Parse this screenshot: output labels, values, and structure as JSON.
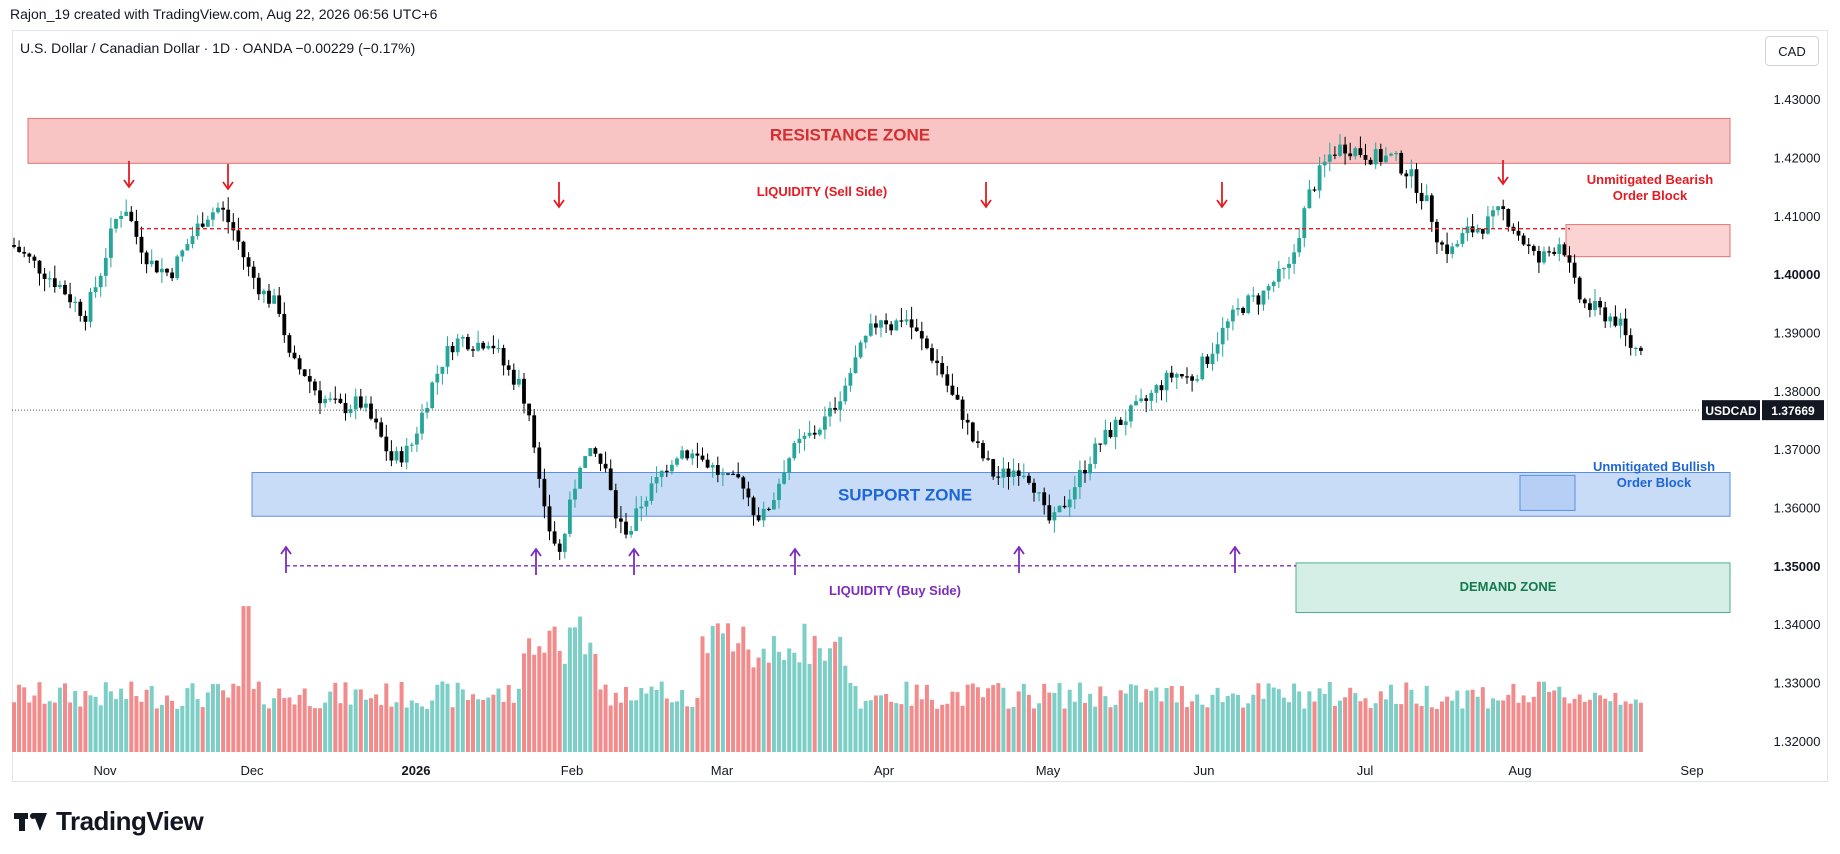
{
  "header": {
    "attribution": "Rajon_19 created with TradingView.com, Aug 22, 2026 06:56 UTC+6",
    "symbol_line": "U.S. Dollar / Canadian Dollar · 1D · OANDA  −0.00229 (−0.17%)",
    "currency": "CAD"
  },
  "brand": "TradingView",
  "colors": {
    "up": "#26a69a",
    "down": "#000000",
    "vol_up": "#7ccfc6",
    "vol_down": "#f28b8b",
    "resistance": "#f8c4c4",
    "support": "#c9dcf7",
    "demand": "#d6efe6",
    "sell": "#e31b23",
    "buy": "#7b2cbf"
  },
  "chart_data": {
    "type": "candlestick",
    "ylim": [
      1.315,
      1.435
    ],
    "y_ticks": [
      "1.43000",
      "1.42000",
      "1.41000",
      "1.40000",
      "1.39000",
      "1.38000",
      "1.37000",
      "1.36000",
      "1.35000",
      "1.34000",
      "1.33000",
      "1.32000"
    ],
    "x_labels": [
      {
        "label": "Nov",
        "x": 105
      },
      {
        "label": "Dec",
        "x": 252
      },
      {
        "label": "2026",
        "x": 416
      },
      {
        "label": "Feb",
        "x": 572
      },
      {
        "label": "Mar",
        "x": 722
      },
      {
        "label": "Apr",
        "x": 884
      },
      {
        "label": "May",
        "x": 1048
      },
      {
        "label": "Jun",
        "x": 1204
      },
      {
        "label": "Jul",
        "x": 1365
      },
      {
        "label": "Aug",
        "x": 1520
      },
      {
        "label": "Sep",
        "x": 1692
      }
    ],
    "last_price": {
      "label": "USDCAD",
      "value": "1.37669",
      "price": 1.37669
    },
    "zones": {
      "resistance": {
        "label": "RESISTANCE ZONE",
        "low": 1.419,
        "high": 1.4267
      },
      "support": {
        "label": "SUPPORT ZONE",
        "low": 1.3585,
        "high": 1.366
      },
      "demand": {
        "label": "DEMAND ZONE",
        "low": 1.342,
        "high": 1.3505
      },
      "bearish_ob": {
        "label1": "Unmitigated Bearish",
        "label2": "Order Block",
        "low": 1.403,
        "high": 1.4085
      },
      "bullish_ob": {
        "label1": "Unmitigated Bullish",
        "label2": "Order Block",
        "low": 1.3595,
        "high": 1.3655
      }
    },
    "liquidity": {
      "sell": {
        "label": "LIQUIDITY (Sell Side)",
        "level": 1.4078
      },
      "buy": {
        "label": "LIQUIDITY (Buy Side)",
        "level": 1.35
      }
    },
    "close_path": [
      [
        12,
        1.405
      ],
      [
        40,
        1.401
      ],
      [
        60,
        1.398
      ],
      [
        85,
        1.393
      ],
      [
        100,
        1.4
      ],
      [
        115,
        1.409
      ],
      [
        125,
        1.412
      ],
      [
        135,
        1.407
      ],
      [
        150,
        1.402
      ],
      [
        170,
        1.4
      ],
      [
        190,
        1.406
      ],
      [
        205,
        1.41
      ],
      [
        220,
        1.4115
      ],
      [
        235,
        1.407
      ],
      [
        248,
        1.401
      ],
      [
        262,
        1.397
      ],
      [
        280,
        1.394
      ],
      [
        290,
        1.385
      ],
      [
        305,
        1.383
      ],
      [
        320,
        1.379
      ],
      [
        340,
        1.377
      ],
      [
        360,
        1.378
      ],
      [
        375,
        1.374
      ],
      [
        392,
        1.368
      ],
      [
        410,
        1.37
      ],
      [
        422,
        1.376
      ],
      [
        432,
        1.381
      ],
      [
        442,
        1.385
      ],
      [
        452,
        1.388
      ],
      [
        462,
        1.389
      ],
      [
        476,
        1.388
      ],
      [
        490,
        1.389
      ],
      [
        505,
        1.384
      ],
      [
        520,
        1.381
      ],
      [
        532,
        1.375
      ],
      [
        542,
        1.36
      ],
      [
        550,
        1.356
      ],
      [
        560,
        1.352
      ],
      [
        570,
        1.36
      ],
      [
        580,
        1.368
      ],
      [
        595,
        1.369
      ],
      [
        606,
        1.366
      ],
      [
        618,
        1.357
      ],
      [
        630,
        1.356
      ],
      [
        642,
        1.361
      ],
      [
        655,
        1.364
      ],
      [
        665,
        1.367
      ],
      [
        680,
        1.37
      ],
      [
        692,
        1.369
      ],
      [
        705,
        1.368
      ],
      [
        718,
        1.366
      ],
      [
        730,
        1.364
      ],
      [
        742,
        1.365
      ],
      [
        752,
        1.36
      ],
      [
        762,
        1.358
      ],
      [
        774,
        1.362
      ],
      [
        786,
        1.368
      ],
      [
        800,
        1.371
      ],
      [
        815,
        1.373
      ],
      [
        830,
        1.376
      ],
      [
        845,
        1.381
      ],
      [
        858,
        1.386
      ],
      [
        870,
        1.39
      ],
      [
        882,
        1.393
      ],
      [
        892,
        1.391
      ],
      [
        904,
        1.393
      ],
      [
        915,
        1.39
      ],
      [
        928,
        1.387
      ],
      [
        940,
        1.384
      ],
      [
        952,
        1.379
      ],
      [
        963,
        1.376
      ],
      [
        974,
        1.371
      ],
      [
        985,
        1.368
      ],
      [
        996,
        1.365
      ],
      [
        1008,
        1.366
      ],
      [
        1020,
        1.367
      ],
      [
        1032,
        1.365
      ],
      [
        1044,
        1.359
      ],
      [
        1052,
        1.357
      ],
      [
        1062,
        1.36
      ],
      [
        1075,
        1.364
      ],
      [
        1088,
        1.368
      ],
      [
        1100,
        1.371
      ],
      [
        1115,
        1.374
      ],
      [
        1130,
        1.376
      ],
      [
        1145,
        1.378
      ],
      [
        1160,
        1.381
      ],
      [
        1175,
        1.383
      ],
      [
        1190,
        1.382
      ],
      [
        1205,
        1.385
      ],
      [
        1218,
        1.389
      ],
      [
        1230,
        1.392
      ],
      [
        1245,
        1.395
      ],
      [
        1260,
        1.396
      ],
      [
        1275,
        1.399
      ],
      [
        1290,
        1.401
      ],
      [
        1300,
        1.408
      ],
      [
        1310,
        1.414
      ],
      [
        1322,
        1.418
      ],
      [
        1332,
        1.421
      ],
      [
        1345,
        1.422
      ],
      [
        1360,
        1.421
      ],
      [
        1375,
        1.42
      ],
      [
        1392,
        1.42
      ],
      [
        1405,
        1.418
      ],
      [
        1418,
        1.415
      ],
      [
        1430,
        1.411
      ],
      [
        1440,
        1.405
      ],
      [
        1452,
        1.404
      ],
      [
        1465,
        1.407
      ],
      [
        1478,
        1.408
      ],
      [
        1490,
        1.409
      ],
      [
        1502,
        1.411
      ],
      [
        1514,
        1.408
      ],
      [
        1526,
        1.405
      ],
      [
        1538,
        1.402
      ],
      [
        1550,
        1.404
      ],
      [
        1562,
        1.406
      ],
      [
        1572,
        1.399
      ],
      [
        1582,
        1.395
      ],
      [
        1594,
        1.394
      ],
      [
        1606,
        1.393
      ],
      [
        1618,
        1.392
      ],
      [
        1628,
        1.388
      ],
      [
        1638,
        1.387
      ],
      [
        1648,
        1.39
      ],
      [
        1656,
        1.386
      ],
      [
        1664,
        1.381
      ],
      [
        1672,
        1.379
      ],
      [
        1678,
        1.377
      ]
    ],
    "volume_note": "relative daily volume bars along the bottom of the chart"
  }
}
